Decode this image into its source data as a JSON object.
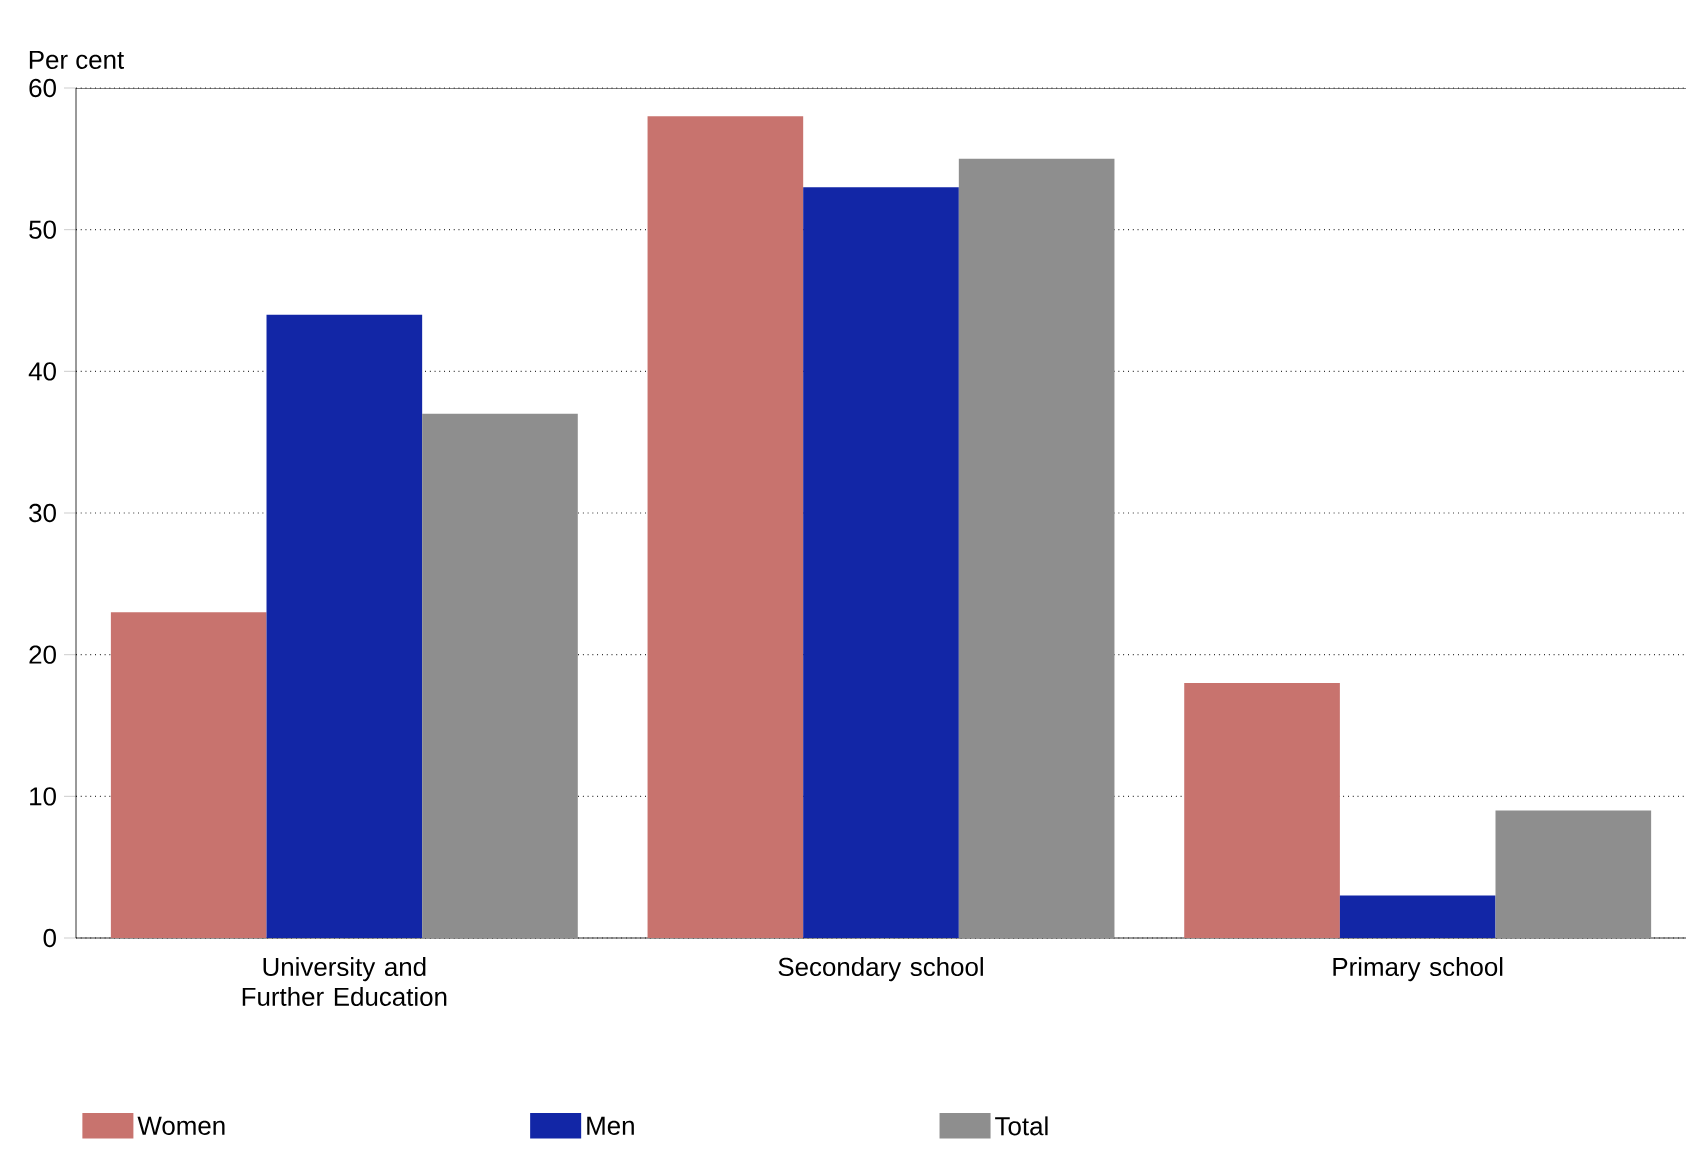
{
  "chart_data": {
    "type": "bar",
    "ylabel": "Per cent",
    "categories": [
      "University and Further Education",
      "Secondary school",
      "Primary school"
    ],
    "series": [
      {
        "name": "Women",
        "color": "#c8736e",
        "values": [
          23,
          58,
          18
        ]
      },
      {
        "name": "Men",
        "color": "#1226a6",
        "values": [
          44,
          53,
          3
        ]
      },
      {
        "name": "Total",
        "color": "#8e8e8e",
        "values": [
          37,
          55,
          9
        ]
      }
    ],
    "ylim": [
      0,
      60
    ],
    "yticks": [
      0,
      10,
      20,
      30,
      40,
      50,
      60
    ],
    "grid": "y",
    "legend": "bottom"
  }
}
